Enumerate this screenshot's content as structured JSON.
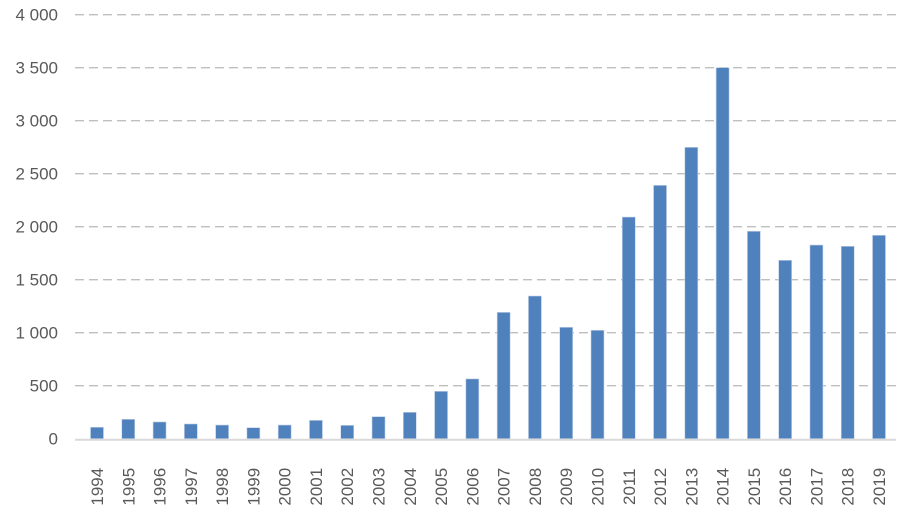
{
  "chart_data": {
    "type": "bar",
    "title": "",
    "xlabel": "",
    "ylabel": "",
    "categories": [
      "1994",
      "1995",
      "1996",
      "1997",
      "1998",
      "1999",
      "2000",
      "2001",
      "2002",
      "2003",
      "2004",
      "2005",
      "2006",
      "2007",
      "2008",
      "2009",
      "2010",
      "2011",
      "2012",
      "2013",
      "2014",
      "2015",
      "2016",
      "2017",
      "2018",
      "2019"
    ],
    "values": [
      108,
      183,
      158,
      139,
      129,
      104,
      129,
      173,
      126,
      208,
      249,
      447,
      564,
      1192,
      1346,
      1051,
      1023,
      2091,
      2390,
      2749,
      3500,
      1957,
      1683,
      1827,
      1815,
      1919
    ],
    "ylim": [
      0,
      4000
    ],
    "yticks": [
      0,
      500,
      1000,
      1500,
      2000,
      2500,
      3000,
      3500,
      4000
    ],
    "ytick_labels": [
      "0",
      "500",
      "1 000",
      "1 500",
      "2 000",
      "2 500",
      "3 000",
      "3 500",
      "4 000"
    ],
    "grid": true,
    "legend": "none",
    "bar_color": "#4f81bd",
    "grid_color": "#bfbfbf"
  }
}
